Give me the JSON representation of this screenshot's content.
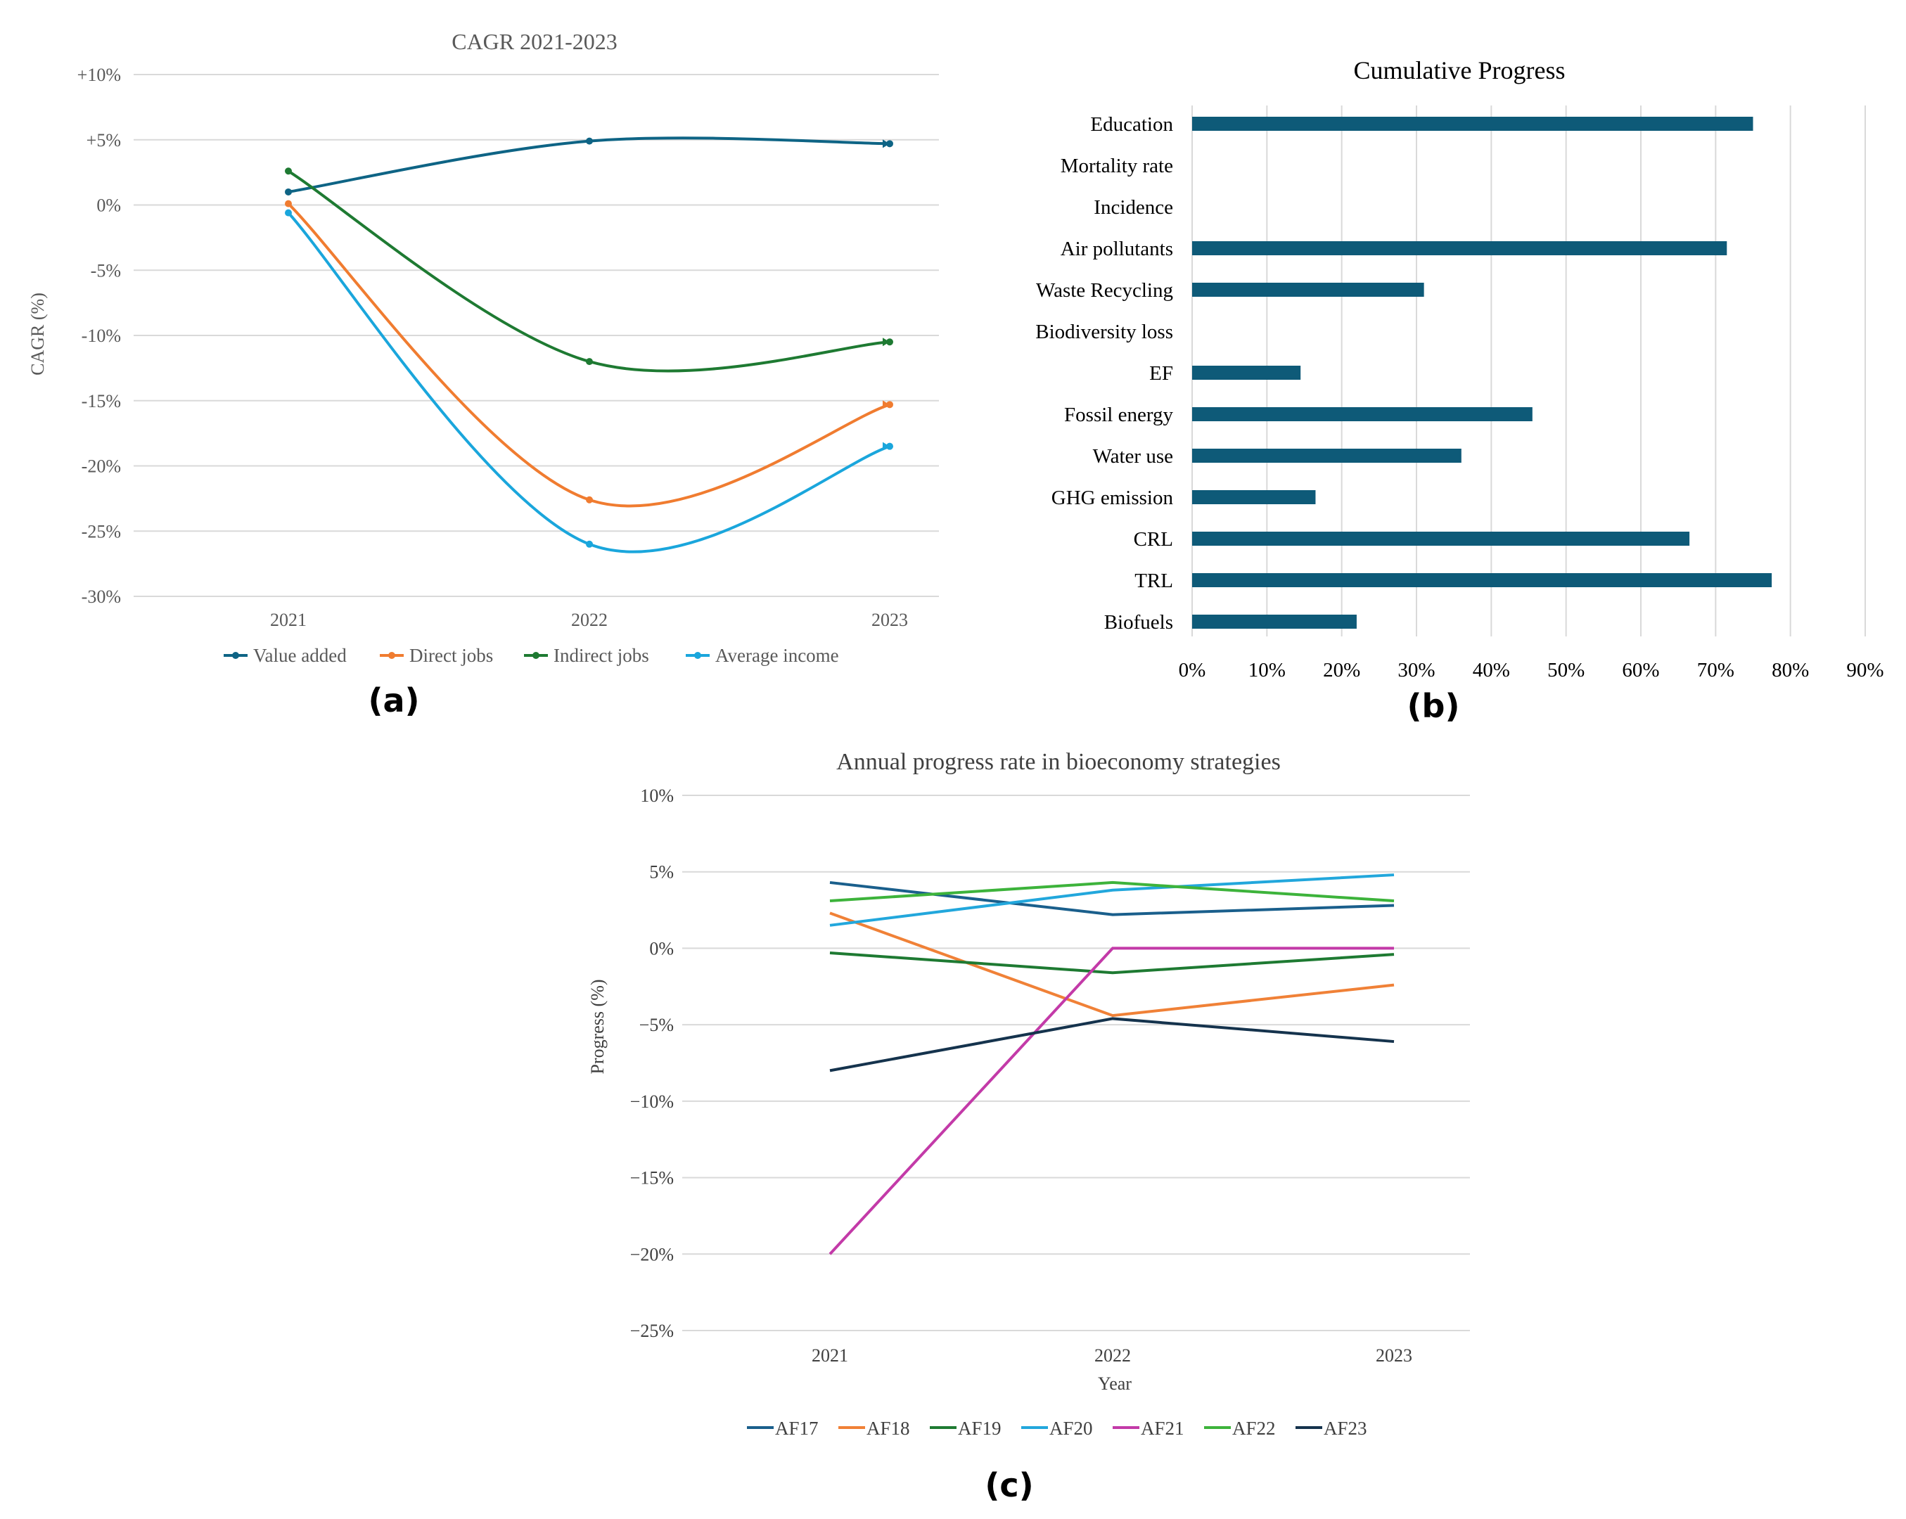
{
  "chart_data": [
    {
      "panel": "(a)",
      "type": "line",
      "title": "CAGR 2021-2023",
      "xlabel": "",
      "ylabel": "CAGR (%)",
      "categories": [
        "2021",
        "2022",
        "2023"
      ],
      "ylim": [
        -30,
        10
      ],
      "yticks": [
        "+10%",
        "+5%",
        "0%",
        "-5%",
        "-10%",
        "-15%",
        "-20%",
        "-25%",
        "-30%"
      ],
      "grid": true,
      "smooth": true,
      "legend_position": "bottom",
      "series": [
        {
          "name": "Value added",
          "color": "#0e6485",
          "values": [
            1.0,
            4.9,
            4.7
          ]
        },
        {
          "name": "Direct jobs",
          "color": "#f07c30",
          "values": [
            0.1,
            -22.6,
            -15.3
          ]
        },
        {
          "name": "Indirect jobs",
          "color": "#1e7a32",
          "values": [
            2.6,
            -12.0,
            -10.5
          ]
        },
        {
          "name": "Average income",
          "color": "#1aa6dc",
          "values": [
            -0.6,
            -26.0,
            -18.5
          ]
        }
      ]
    },
    {
      "panel": "(b)",
      "type": "bar",
      "orientation": "horizontal",
      "title": "Cumulative Progress",
      "xlabel": "",
      "ylabel": "",
      "color": "#0e5a78",
      "categories": [
        "Education",
        "Mortality rate",
        "Incidence",
        "Air pollutants",
        "Waste Recycling",
        "Biodiversity loss",
        "EF",
        "Fossil energy",
        "Water use",
        "GHG emission",
        "CRL",
        "TRL",
        "Biofuels"
      ],
      "values": [
        75,
        0,
        0,
        71.5,
        31,
        0,
        14.5,
        45.5,
        36,
        16.5,
        66.5,
        77.5,
        22
      ],
      "xlim": [
        0,
        90
      ],
      "xticks": [
        "0%",
        "10%",
        "20%",
        "30%",
        "40%",
        "50%",
        "60%",
        "70%",
        "80%",
        "90%"
      ],
      "grid": true
    },
    {
      "panel": "(c)",
      "type": "line",
      "title": "Annual progress rate in bioeconomy strategies",
      "xlabel": "Year",
      "ylabel": "Progress (%)",
      "categories": [
        "2021",
        "2022",
        "2023"
      ],
      "ylim": [
        -25,
        10
      ],
      "yticks": [
        "10%",
        "5%",
        "0%",
        "−5%",
        "−10%",
        "−15%",
        "−20%",
        "−25%"
      ],
      "grid": true,
      "legend_position": "bottom",
      "series": [
        {
          "name": "AF17",
          "color": "#1a5f8c",
          "values": [
            4.3,
            2.2,
            2.8
          ]
        },
        {
          "name": "AF18",
          "color": "#f08137",
          "values": [
            2.3,
            -4.4,
            -2.4
          ]
        },
        {
          "name": "AF19",
          "color": "#1e7a32",
          "values": [
            -0.3,
            -1.6,
            -0.4
          ]
        },
        {
          "name": "AF20",
          "color": "#22a7dc",
          "values": [
            1.5,
            3.8,
            4.8
          ]
        },
        {
          "name": "AF21",
          "color": "#c33aa8",
          "values": [
            -20,
            0,
            0
          ]
        },
        {
          "name": "AF22",
          "color": "#3db33b",
          "values": [
            3.1,
            4.3,
            3.1
          ]
        },
        {
          "name": "AF23",
          "color": "#15334d",
          "values": [
            -8.0,
            -4.6,
            -6.1
          ]
        }
      ]
    }
  ]
}
